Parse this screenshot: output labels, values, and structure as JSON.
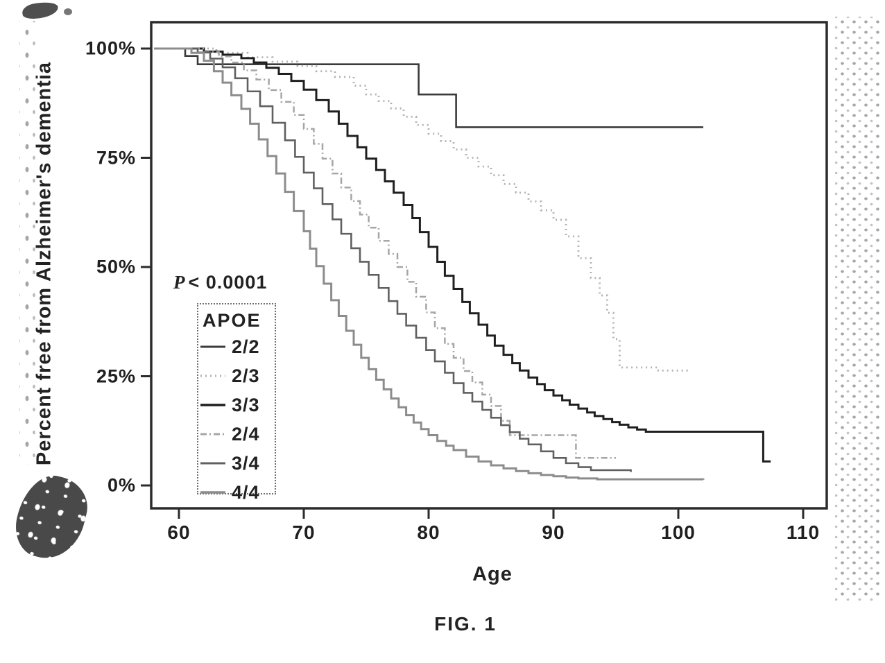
{
  "figure_caption": "FIG. 1",
  "chart_data": {
    "type": "line",
    "subtype": "kaplan_meier_step_survival",
    "title": "",
    "xlabel": "Age",
    "ylabel": "Percent free from Alzheimer's dementia",
    "p_value": {
      "symbol": "P",
      "comparison": "< 0.0001"
    },
    "legend_title": "APOE",
    "legend_position": "inside-left",
    "grid": false,
    "xlim": [
      57.8,
      112
    ],
    "ylim": [
      -5,
      106
    ],
    "x_ticks": [
      60,
      70,
      80,
      90,
      100,
      110
    ],
    "y_ticks": [
      {
        "value": 100,
        "label": "100%"
      },
      {
        "value": 75,
        "label": "75%"
      },
      {
        "value": 50,
        "label": "50%"
      },
      {
        "value": 25,
        "label": "25%"
      },
      {
        "value": 0,
        "label": "0%"
      }
    ],
    "series": [
      {
        "name": "2/2",
        "color": "#3b3b3b",
        "dash": "",
        "width": 2.6,
        "points": [
          [
            58,
            100
          ],
          [
            60.5,
            98.3
          ],
          [
            61.5,
            96.4
          ],
          [
            79.2,
            89.5
          ],
          [
            82.2,
            82
          ],
          [
            102,
            82
          ]
        ]
      },
      {
        "name": "2/3",
        "color": "#b3b3b3",
        "dash": "2 5",
        "width": 2.8,
        "points": [
          [
            58,
            100
          ],
          [
            63,
            99
          ],
          [
            65.5,
            98
          ],
          [
            67.5,
            97
          ],
          [
            69.5,
            96
          ],
          [
            71,
            94.8
          ],
          [
            72.5,
            93.5
          ],
          [
            74,
            91.5
          ],
          [
            75,
            89.5
          ],
          [
            76,
            88
          ],
          [
            77,
            86.3
          ],
          [
            78,
            84.4
          ],
          [
            79,
            82.5
          ],
          [
            80,
            80.5
          ],
          [
            81,
            78.8
          ],
          [
            82,
            76.9
          ],
          [
            83,
            75
          ],
          [
            84,
            73
          ],
          [
            85,
            71
          ],
          [
            86,
            69
          ],
          [
            87,
            67
          ],
          [
            88,
            65
          ],
          [
            89,
            63
          ],
          [
            90,
            60.8
          ],
          [
            91,
            57
          ],
          [
            92,
            52
          ],
          [
            93,
            47.5
          ],
          [
            93.7,
            43.5
          ],
          [
            94.3,
            39.5
          ],
          [
            94.8,
            33.5
          ],
          [
            95.3,
            27
          ],
          [
            98.4,
            26.3
          ],
          [
            101,
            26.3
          ]
        ]
      },
      {
        "name": "3/3",
        "color": "#1f1f1f",
        "dash": "",
        "width": 3,
        "points": [
          [
            58,
            100
          ],
          [
            62,
            99.3
          ],
          [
            63.5,
            98.6
          ],
          [
            65,
            97.8
          ],
          [
            66,
            96.8
          ],
          [
            67,
            95.6
          ],
          [
            68,
            94.2
          ],
          [
            69,
            92.6
          ],
          [
            70,
            90.6
          ],
          [
            71,
            88.2
          ],
          [
            72,
            85.6
          ],
          [
            72.8,
            82.8
          ],
          [
            73.5,
            80
          ],
          [
            74.3,
            77.4
          ],
          [
            75,
            74.8
          ],
          [
            75.8,
            72.2
          ],
          [
            76.5,
            69.6
          ],
          [
            77.2,
            67
          ],
          [
            78,
            64.2
          ],
          [
            78.7,
            61.2
          ],
          [
            79.3,
            58
          ],
          [
            80,
            54.6
          ],
          [
            80.7,
            51.2
          ],
          [
            81.3,
            48
          ],
          [
            82,
            45
          ],
          [
            82.7,
            42
          ],
          [
            83.3,
            39.4
          ],
          [
            84,
            36.8
          ],
          [
            84.7,
            34.3
          ],
          [
            85.3,
            32
          ],
          [
            86,
            29.9
          ],
          [
            86.7,
            28
          ],
          [
            87.3,
            26.3
          ],
          [
            88,
            24.7
          ],
          [
            88.7,
            23.2
          ],
          [
            89.3,
            21.8
          ],
          [
            90,
            20.6
          ],
          [
            90.7,
            19.5
          ],
          [
            91.3,
            18.5
          ],
          [
            92,
            17.6
          ],
          [
            92.7,
            16.7
          ],
          [
            93.3,
            15.9
          ],
          [
            94,
            15.2
          ],
          [
            94.7,
            14.5
          ],
          [
            95.3,
            13.9
          ],
          [
            96,
            13.3
          ],
          [
            96.7,
            12.8
          ],
          [
            97.4,
            12.3
          ],
          [
            106.8,
            5.5
          ],
          [
            107.4,
            5.5
          ]
        ]
      },
      {
        "name": "2/4",
        "color": "#a6a6a6",
        "dash": "9 4 2 4",
        "width": 2.5,
        "points": [
          [
            58,
            100
          ],
          [
            62,
            99.2
          ],
          [
            63.2,
            98.2
          ],
          [
            64.2,
            96.8
          ],
          [
            65.2,
            95
          ],
          [
            66.2,
            92.9
          ],
          [
            67.2,
            90.5
          ],
          [
            68.2,
            87.8
          ],
          [
            69.2,
            84.8
          ],
          [
            70,
            81.6
          ],
          [
            70.8,
            78.2
          ],
          [
            71.5,
            74.8
          ],
          [
            72.3,
            71.4
          ],
          [
            73,
            68.2
          ],
          [
            73.8,
            65.1
          ],
          [
            74.5,
            62
          ],
          [
            75.2,
            59
          ],
          [
            76,
            56
          ],
          [
            76.8,
            53
          ],
          [
            77.5,
            50
          ],
          [
            78.3,
            46.6
          ],
          [
            79,
            43.2
          ],
          [
            79.8,
            39.6
          ],
          [
            80.5,
            36
          ],
          [
            81.3,
            32.4
          ],
          [
            82,
            29.2
          ],
          [
            82.8,
            26.2
          ],
          [
            83.5,
            23.6
          ],
          [
            84.3,
            20.8
          ],
          [
            85,
            18.2
          ],
          [
            85.8,
            14.8
          ],
          [
            86.5,
            11.5
          ],
          [
            91.8,
            6.3
          ],
          [
            95,
            6.3
          ]
        ]
      },
      {
        "name": "3/4",
        "color": "#606060",
        "dash": "",
        "width": 2.6,
        "points": [
          [
            58,
            100
          ],
          [
            61.5,
            99.1
          ],
          [
            62.5,
            97.7
          ],
          [
            63.5,
            95.7
          ],
          [
            64.5,
            93.2
          ],
          [
            65.5,
            90.2
          ],
          [
            66.5,
            86.8
          ],
          [
            67.5,
            83
          ],
          [
            68.5,
            79
          ],
          [
            69.3,
            75.2
          ],
          [
            70,
            71.6
          ],
          [
            70.8,
            68
          ],
          [
            71.5,
            64.4
          ],
          [
            72.3,
            60.9
          ],
          [
            73,
            57.6
          ],
          [
            73.8,
            54.3
          ],
          [
            74.5,
            51.2
          ],
          [
            75.2,
            48.2
          ],
          [
            76,
            45.2
          ],
          [
            76.8,
            42.2
          ],
          [
            77.5,
            39.3
          ],
          [
            78.2,
            36.6
          ],
          [
            79,
            33.8
          ],
          [
            79.8,
            31
          ],
          [
            80.5,
            28.4
          ],
          [
            81.3,
            25.8
          ],
          [
            82,
            23.4
          ],
          [
            82.8,
            21.2
          ],
          [
            83.5,
            19.2
          ],
          [
            84.3,
            17.3
          ],
          [
            85,
            15.5
          ],
          [
            85.8,
            13.8
          ],
          [
            86.5,
            12.2
          ],
          [
            87.3,
            10.7
          ],
          [
            88,
            9.4
          ],
          [
            89,
            7.8
          ],
          [
            90,
            6.3
          ],
          [
            91,
            5.1
          ],
          [
            92,
            4.2
          ],
          [
            93,
            3.5
          ],
          [
            96.2,
            3.1
          ]
        ]
      },
      {
        "name": "4/4",
        "color": "#8c8c8c",
        "dash": "",
        "width": 3,
        "points": [
          [
            58,
            100
          ],
          [
            61,
            99
          ],
          [
            62,
            97.2
          ],
          [
            62.8,
            94.8
          ],
          [
            63.5,
            92.2
          ],
          [
            64.2,
            89.3
          ],
          [
            65,
            86.2
          ],
          [
            65.7,
            82.8
          ],
          [
            66.4,
            79.2
          ],
          [
            67.1,
            75.4
          ],
          [
            67.8,
            71.4
          ],
          [
            68.5,
            67.2
          ],
          [
            69.2,
            62.8
          ],
          [
            70,
            58.2
          ],
          [
            70.5,
            54.2
          ],
          [
            71,
            50.2
          ],
          [
            71.6,
            46.2
          ],
          [
            72.2,
            42.4
          ],
          [
            72.8,
            38.8
          ],
          [
            73.4,
            35.4
          ],
          [
            74,
            32.2
          ],
          [
            74.6,
            29.2
          ],
          [
            75.2,
            26.6
          ],
          [
            75.8,
            24.2
          ],
          [
            76.4,
            22
          ],
          [
            77,
            19.9
          ],
          [
            77.6,
            17.9
          ],
          [
            78.2,
            16.1
          ],
          [
            78.8,
            14.4
          ],
          [
            79.4,
            12.9
          ],
          [
            80,
            11.5
          ],
          [
            80.7,
            10.2
          ],
          [
            81.4,
            9.1
          ],
          [
            82,
            8.1
          ],
          [
            83,
            6.6
          ],
          [
            84,
            5.5
          ],
          [
            85,
            4.6
          ],
          [
            86,
            3.9
          ],
          [
            87,
            3.3
          ],
          [
            88,
            2.8
          ],
          [
            89,
            2.4
          ],
          [
            90,
            2.1
          ],
          [
            91,
            1.8
          ],
          [
            92,
            1.6
          ],
          [
            93.5,
            1.4
          ],
          [
            102,
            1.3
          ]
        ]
      }
    ]
  }
}
